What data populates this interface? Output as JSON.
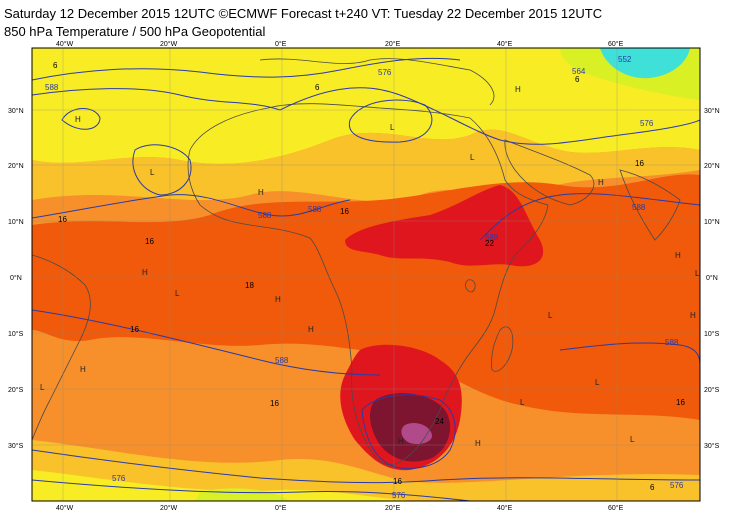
{
  "header": {
    "line1": "Saturday 12 December 2015 12UTC ©ECMWF Forecast t+240 VT: Tuesday 22 December 2015 12UTC",
    "line2": "850 hPa Temperature / 500 hPa Geopotential"
  },
  "axes": {
    "lon_labels": [
      "40°W",
      "20°W",
      "0°E",
      "20°E",
      "40°E",
      "60°E"
    ],
    "lat_labels": [
      "30°N",
      "20°N",
      "10°N",
      "0°N",
      "10°S",
      "20°S",
      "30°S"
    ]
  },
  "colors": {
    "very_hot": "#7d1530",
    "hot": "#e0161e",
    "warm": "#f05a0a",
    "mild": "#f7902b",
    "cool": "#f9c12a",
    "cooler": "#f8ec24",
    "cold": "#d9f024",
    "cyan": "#3fe0d8",
    "contour": "#2a3aa8",
    "coast": "#4a4a4a"
  },
  "temp_labels": [
    "6",
    "6",
    "16",
    "16",
    "16",
    "16",
    "16",
    "18",
    "16",
    "22",
    "24",
    "16",
    "16",
    "6",
    "6"
  ],
  "geo_labels": [
    "588",
    "576",
    "564",
    "552",
    "576",
    "588",
    "588",
    "588",
    "588",
    "588",
    "576",
    "576",
    "576",
    "588"
  ],
  "pressure_markers": [
    "H",
    "L",
    "H",
    "L",
    "H",
    "L",
    "H",
    "H",
    "L",
    "H",
    "H",
    "L",
    "H",
    "H",
    "L",
    "L",
    "H",
    "L",
    "H",
    "L",
    "H",
    "L"
  ]
}
